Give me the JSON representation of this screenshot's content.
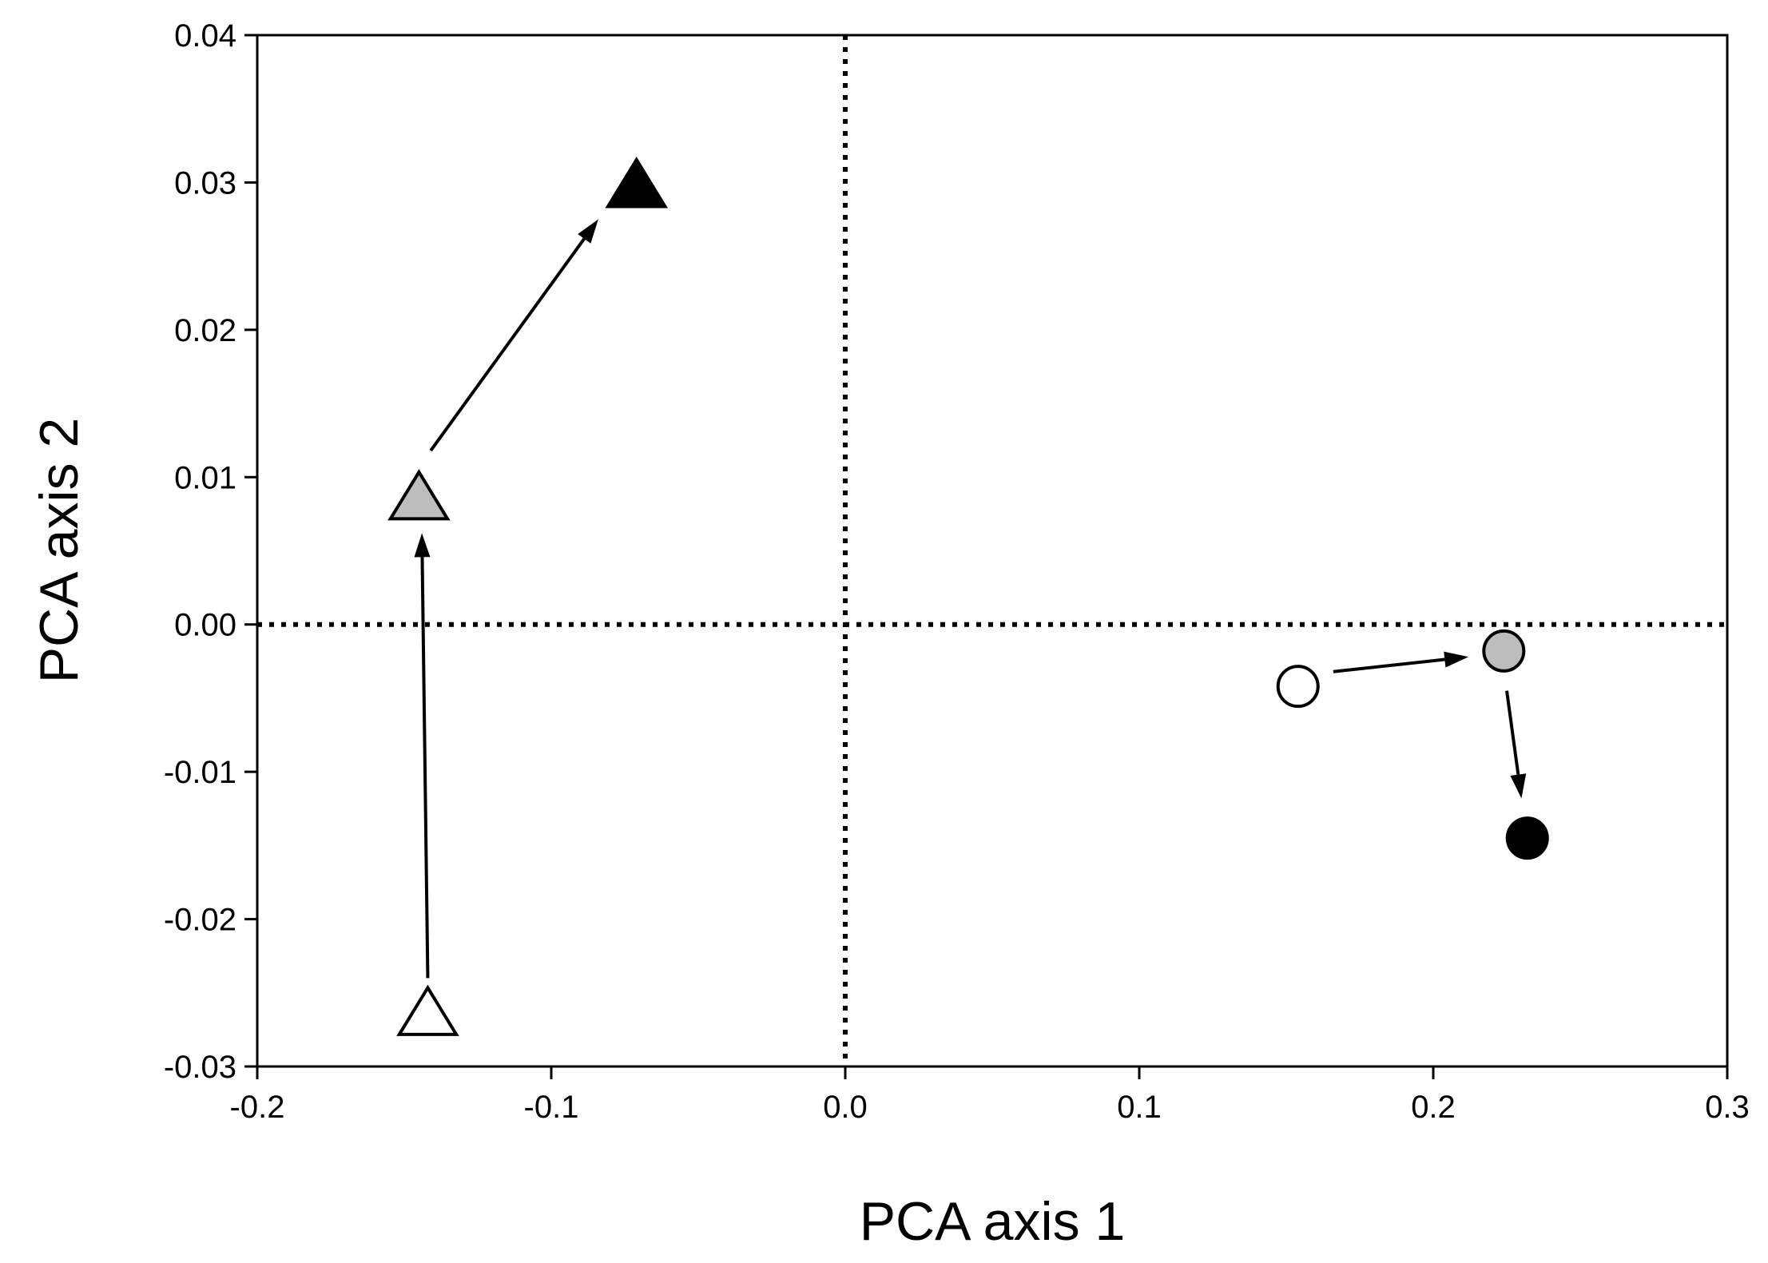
{
  "chart_data": {
    "type": "scatter",
    "title": "",
    "xlabel": "PCA axis 1",
    "ylabel": "PCA axis 2",
    "xlim": [
      -0.2,
      0.3
    ],
    "ylim": [
      -0.03,
      0.04
    ],
    "x_ticks": [
      "-0.2",
      "-0.1",
      "0.0",
      "0.1",
      "0.2",
      "0.3"
    ],
    "y_ticks": [
      "-0.03",
      "-0.02",
      "-0.01",
      "0.00",
      "0.01",
      "0.02",
      "0.03",
      "0.04"
    ],
    "grid": false,
    "reference_lines": [
      {
        "axis": "x",
        "value": 0.0,
        "style": "dotted"
      },
      {
        "axis": "y",
        "value": 0.0,
        "style": "dotted"
      }
    ],
    "points": [
      {
        "shape": "triangle",
        "fill": "#ffffff",
        "x": -0.142,
        "y": -0.0265
      },
      {
        "shape": "triangle",
        "fill": "#bdbdbd",
        "x": -0.145,
        "y": 0.0085
      },
      {
        "shape": "triangle",
        "fill": "#000000",
        "x": -0.071,
        "y": 0.0297
      },
      {
        "shape": "circle",
        "fill": "#ffffff",
        "x": 0.154,
        "y": -0.0042
      },
      {
        "shape": "circle",
        "fill": "#bdbdbd",
        "x": 0.224,
        "y": -0.0018
      },
      {
        "shape": "circle",
        "fill": "#000000",
        "x": 0.232,
        "y": -0.0145
      }
    ],
    "arrows": [
      {
        "from": [
          -0.142,
          -0.024
        ],
        "to": [
          -0.144,
          0.0062
        ]
      },
      {
        "from": [
          -0.141,
          0.0118
        ],
        "to": [
          -0.084,
          0.0275
        ]
      },
      {
        "from": [
          0.166,
          -0.0032
        ],
        "to": [
          0.212,
          -0.0022
        ]
      },
      {
        "from": [
          0.225,
          -0.0045
        ],
        "to": [
          0.23,
          -0.0118
        ]
      }
    ]
  },
  "colors": {
    "axis": "#000000",
    "marker_edge": "#000000"
  }
}
